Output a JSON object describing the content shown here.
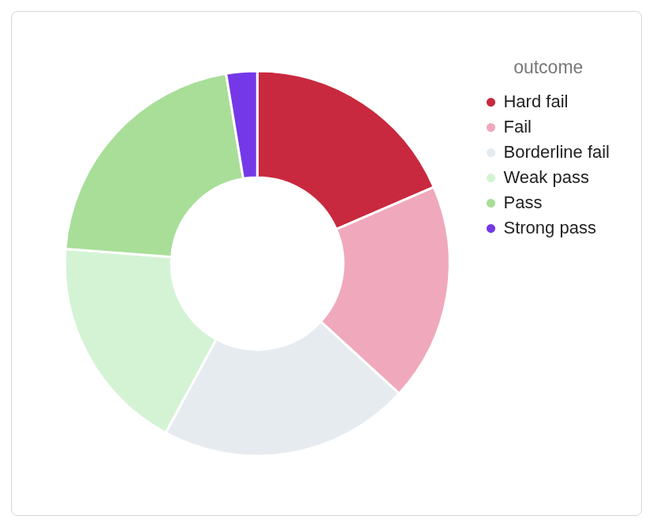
{
  "chart_data": {
    "type": "doughnut",
    "legend_title": "outcome",
    "categories": [
      "Hard fail",
      "Fail",
      "Borderline fail",
      "Weak pass",
      "Pass",
      "Strong pass"
    ],
    "values": [
      18.5,
      18.3,
      21.1,
      18.3,
      21.2,
      2.6
    ],
    "colors": [
      "#c8293f",
      "#f0a8bc",
      "#e6ebf0",
      "#d4f3d4",
      "#a8de98",
      "#7438e8"
    ],
    "legend": "right"
  }
}
